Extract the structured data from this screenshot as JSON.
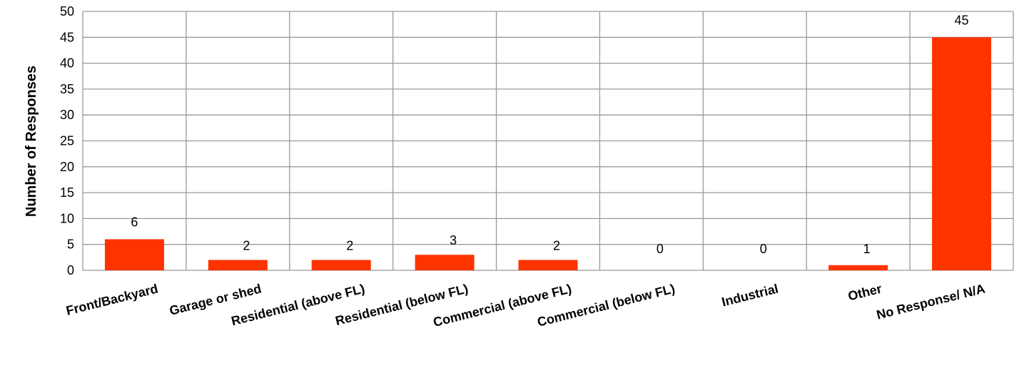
{
  "chart_data": {
    "type": "bar",
    "title": "",
    "xlabel": "",
    "ylabel": "Number of Responses",
    "categories": [
      "Front/Backyard",
      "Garage or shed",
      "Residential (above FL)",
      "Residential (below FL)",
      "Commercial (above FL)",
      "Commercial (below FL)",
      "Industrial",
      "Other",
      "No Response/ N/A"
    ],
    "values": [
      6,
      2,
      2,
      3,
      2,
      0,
      0,
      1,
      45
    ],
    "data_labels": [
      "6",
      "2",
      "2",
      "3",
      "2",
      "0",
      "0",
      "1",
      "45"
    ],
    "ylim": [
      0,
      50
    ],
    "y_ticks": [
      "0",
      "5",
      "10",
      "15",
      "20",
      "25",
      "30",
      "35",
      "40",
      "45",
      "50"
    ],
    "grid": true,
    "legend": "none",
    "bar_color": "#FF3300",
    "grid_color": "#9A9A9A"
  }
}
